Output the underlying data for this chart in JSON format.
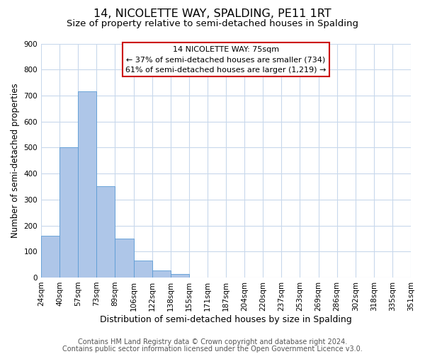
{
  "title": "14, NICOLETTE WAY, SPALDING, PE11 1RT",
  "subtitle": "Size of property relative to semi-detached houses in Spalding",
  "xlabel": "Distribution of semi-detached houses by size in Spalding",
  "ylabel": "Number of semi-detached properties",
  "bin_labels": [
    "24sqm",
    "40sqm",
    "57sqm",
    "73sqm",
    "89sqm",
    "106sqm",
    "122sqm",
    "138sqm",
    "155sqm",
    "171sqm",
    "187sqm",
    "204sqm",
    "220sqm",
    "237sqm",
    "253sqm",
    "269sqm",
    "286sqm",
    "302sqm",
    "318sqm",
    "335sqm",
    "351sqm"
  ],
  "bar_values": [
    160,
    500,
    715,
    350,
    150,
    65,
    27,
    13,
    0,
    0,
    0,
    0,
    0,
    0,
    0,
    0,
    0,
    0,
    0,
    0
  ],
  "bar_color": "#aec6e8",
  "bar_edge_color": "#5b9bd5",
  "annotation_line1": "14 NICOLETTE WAY: 75sqm",
  "annotation_line2": "← 37% of semi-detached houses are smaller (734)",
  "annotation_line3": "61% of semi-detached houses are larger (1,219) →",
  "annotation_box_color": "#ffffff",
  "annotation_box_edge_color": "#cc0000",
  "ylim": [
    0,
    900
  ],
  "yticks": [
    0,
    100,
    200,
    300,
    400,
    500,
    600,
    700,
    800,
    900
  ],
  "footnote_line1": "Contains HM Land Registry data © Crown copyright and database right 2024.",
  "footnote_line2": "Contains public sector information licensed under the Open Government Licence v3.0.",
  "background_color": "#ffffff",
  "grid_color": "#c8d8ec",
  "title_fontsize": 11.5,
  "subtitle_fontsize": 9.5,
  "xlabel_fontsize": 9,
  "ylabel_fontsize": 8.5,
  "tick_fontsize": 7.5,
  "footnote_fontsize": 7,
  "annot_fontsize": 8
}
